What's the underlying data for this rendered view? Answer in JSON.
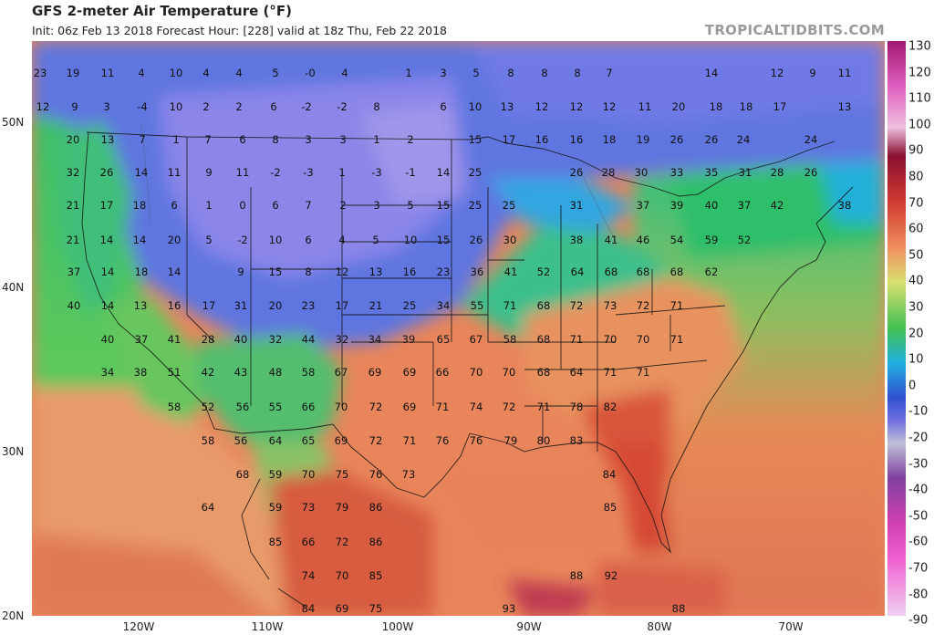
{
  "header": {
    "title": "GFS 2-meter Air Temperature (°F)",
    "subtitle": "Init: 06z Feb 13 2018   Forecast Hour: [228]   valid at 18z Thu, Feb 22 2018",
    "brand": "TROPICALTIDBITS.COM"
  },
  "axes": {
    "lat_labels": [
      "50N",
      "40N",
      "30N",
      "20N"
    ],
    "lon_labels": [
      "120W",
      "110W",
      "100W",
      "90W",
      "80W",
      "70W"
    ]
  },
  "colorbar": {
    "labels": [
      "130",
      "120",
      "110",
      "100",
      "90",
      "80",
      "70",
      "60",
      "50",
      "40",
      "30",
      "20",
      "10",
      "0",
      "-10",
      "-20",
      "-30",
      "-40",
      "-50",
      "-60",
      "-70",
      "-80",
      "-90"
    ]
  },
  "map": {
    "temperature_labels": [
      [
        "23",
        44,
        80
      ],
      [
        "19",
        80,
        80
      ],
      [
        "11",
        118,
        80
      ],
      [
        "4",
        155,
        80
      ],
      [
        "10",
        193,
        80
      ],
      [
        "4",
        226,
        80
      ],
      [
        "4",
        262,
        80
      ],
      [
        "5",
        302,
        80
      ],
      [
        "-0",
        340,
        80
      ],
      [
        "4",
        378,
        80
      ],
      [
        "1",
        448,
        80
      ],
      [
        "3",
        486,
        80
      ],
      [
        "5",
        522,
        80
      ],
      [
        "8",
        560,
        80
      ],
      [
        "8",
        597,
        80
      ],
      [
        "8",
        633,
        80
      ],
      [
        "7",
        668,
        80
      ],
      [
        "14",
        780,
        80
      ],
      [
        "12",
        852,
        80
      ],
      [
        "9",
        891,
        80
      ],
      [
        "11",
        926,
        80
      ],
      [
        "12",
        47,
        117
      ],
      [
        "9",
        82,
        117
      ],
      [
        "3",
        117,
        117
      ],
      [
        "-4",
        156,
        117
      ],
      [
        "10",
        193,
        117
      ],
      [
        "2",
        226,
        117
      ],
      [
        "2",
        262,
        117
      ],
      [
        "6",
        300,
        117
      ],
      [
        "-2",
        336,
        117
      ],
      [
        "-2",
        375,
        117
      ],
      [
        "8",
        413,
        117
      ],
      [
        "6",
        486,
        117
      ],
      [
        "10",
        521,
        117
      ],
      [
        "13",
        556,
        117
      ],
      [
        "12",
        594,
        117
      ],
      [
        "12",
        632,
        117
      ],
      [
        "12",
        668,
        117
      ],
      [
        "11",
        707,
        117
      ],
      [
        "20",
        744,
        117
      ],
      [
        "18",
        785,
        117
      ],
      [
        "18",
        818,
        117
      ],
      [
        "17",
        855,
        117
      ],
      [
        "13",
        926,
        117
      ],
      [
        "20",
        80,
        153
      ],
      [
        "13",
        118,
        153
      ],
      [
        "7",
        156,
        153
      ],
      [
        "1",
        193,
        153
      ],
      [
        "7",
        228,
        153
      ],
      [
        "6",
        266,
        153
      ],
      [
        "8",
        302,
        153
      ],
      [
        "3",
        338,
        153
      ],
      [
        "3",
        376,
        153
      ],
      [
        "1",
        413,
        153
      ],
      [
        "2",
        450,
        153
      ],
      [
        "15",
        521,
        153
      ],
      [
        "17",
        558,
        153
      ],
      [
        "16",
        594,
        153
      ],
      [
        "16",
        632,
        153
      ],
      [
        "18",
        668,
        153
      ],
      [
        "19",
        705,
        153
      ],
      [
        "26",
        742,
        153
      ],
      [
        "26",
        780,
        153
      ],
      [
        "24",
        815,
        153
      ],
      [
        "24",
        889,
        153
      ],
      [
        "32",
        80,
        189
      ],
      [
        "26",
        117,
        189
      ],
      [
        "14",
        155,
        189
      ],
      [
        "11",
        191,
        189
      ],
      [
        "9",
        229,
        189
      ],
      [
        "11",
        266,
        189
      ],
      [
        "-2",
        302,
        189
      ],
      [
        "-3",
        338,
        189
      ],
      [
        "1",
        375,
        189
      ],
      [
        "-3",
        413,
        189
      ],
      [
        "-1",
        450,
        189
      ],
      [
        "14",
        486,
        189
      ],
      [
        "25",
        521,
        189
      ],
      [
        "26",
        632,
        189
      ],
      [
        "28",
        667,
        189
      ],
      [
        "30",
        703,
        189
      ],
      [
        "33",
        742,
        189
      ],
      [
        "35",
        780,
        189
      ],
      [
        "31",
        817,
        189
      ],
      [
        "28",
        852,
        189
      ],
      [
        "26",
        889,
        189
      ],
      [
        "21",
        80,
        225
      ],
      [
        "17",
        117,
        225
      ],
      [
        "18",
        153,
        225
      ],
      [
        "6",
        191,
        225
      ],
      [
        "1",
        229,
        225
      ],
      [
        "0",
        266,
        225
      ],
      [
        "6",
        302,
        225
      ],
      [
        "7",
        338,
        225
      ],
      [
        "2",
        376,
        225
      ],
      [
        "3",
        413,
        225
      ],
      [
        "5",
        450,
        225
      ],
      [
        "15",
        486,
        225
      ],
      [
        "25",
        521,
        225
      ],
      [
        "25",
        558,
        225
      ],
      [
        "31",
        632,
        225
      ],
      [
        "37",
        705,
        225
      ],
      [
        "39",
        742,
        225
      ],
      [
        "40",
        780,
        225
      ],
      [
        "37",
        816,
        225
      ],
      [
        "42",
        852,
        225
      ],
      [
        "38",
        926,
        225
      ],
      [
        "21",
        80,
        263
      ],
      [
        "14",
        117,
        263
      ],
      [
        "14",
        153,
        263
      ],
      [
        "20",
        191,
        263
      ],
      [
        "5",
        229,
        263
      ],
      [
        "-2",
        266,
        263
      ],
      [
        "10",
        302,
        263
      ],
      [
        "6",
        338,
        263
      ],
      [
        "4",
        375,
        263
      ],
      [
        "5",
        412,
        263
      ],
      [
        "10",
        450,
        263
      ],
      [
        "15",
        486,
        263
      ],
      [
        "26",
        522,
        263
      ],
      [
        "30",
        559,
        263
      ],
      [
        "38",
        632,
        263
      ],
      [
        "41",
        670,
        263
      ],
      [
        "46",
        705,
        263
      ],
      [
        "54",
        742,
        263
      ],
      [
        "59",
        780,
        263
      ],
      [
        "52",
        816,
        263
      ],
      [
        "37",
        81,
        298
      ],
      [
        "14",
        118,
        298
      ],
      [
        "18",
        155,
        298
      ],
      [
        "14",
        191,
        298
      ],
      [
        "9",
        264,
        298
      ],
      [
        "15",
        302,
        298
      ],
      [
        "8",
        338,
        298
      ],
      [
        "12",
        375,
        298
      ],
      [
        "13",
        412,
        298
      ],
      [
        "16",
        449,
        298
      ],
      [
        "23",
        486,
        298
      ],
      [
        "36",
        523,
        298
      ],
      [
        "41",
        560,
        298
      ],
      [
        "52",
        596,
        298
      ],
      [
        "64",
        633,
        298
      ],
      [
        "68",
        670,
        298
      ],
      [
        "68",
        705,
        298
      ],
      [
        "68",
        742,
        298
      ],
      [
        "62",
        780,
        298
      ],
      [
        "40",
        81,
        335
      ],
      [
        "14",
        118,
        335
      ],
      [
        "13",
        154,
        335
      ],
      [
        "16",
        191,
        335
      ],
      [
        "17",
        229,
        335
      ],
      [
        "31",
        264,
        335
      ],
      [
        "20",
        302,
        335
      ],
      [
        "23",
        338,
        335
      ],
      [
        "17",
        375,
        335
      ],
      [
        "21",
        412,
        335
      ],
      [
        "25",
        449,
        335
      ],
      [
        "34",
        486,
        335
      ],
      [
        "55",
        523,
        335
      ],
      [
        "71",
        559,
        335
      ],
      [
        "68",
        596,
        335
      ],
      [
        "72",
        632,
        335
      ],
      [
        "73",
        669,
        335
      ],
      [
        "72",
        705,
        335
      ],
      [
        "71",
        742,
        335
      ],
      [
        "40",
        118,
        372
      ],
      [
        "37",
        155,
        372
      ],
      [
        "41",
        191,
        372
      ],
      [
        "28",
        228,
        372
      ],
      [
        "40",
        264,
        372
      ],
      [
        "32",
        302,
        372
      ],
      [
        "44",
        338,
        372
      ],
      [
        "32",
        375,
        372
      ],
      [
        "34",
        411,
        372
      ],
      [
        "39",
        448,
        372
      ],
      [
        "65",
        486,
        372
      ],
      [
        "67",
        522,
        372
      ],
      [
        "58",
        559,
        372
      ],
      [
        "68",
        596,
        372
      ],
      [
        "71",
        632,
        372
      ],
      [
        "70",
        669,
        372
      ],
      [
        "70",
        705,
        372
      ],
      [
        "71",
        742,
        372
      ],
      [
        "34",
        118,
        408
      ],
      [
        "38",
        154,
        408
      ],
      [
        "51",
        191,
        408
      ],
      [
        "42",
        228,
        408
      ],
      [
        "43",
        264,
        408
      ],
      [
        "48",
        302,
        408
      ],
      [
        "58",
        338,
        408
      ],
      [
        "67",
        374,
        408
      ],
      [
        "69",
        411,
        408
      ],
      [
        "69",
        449,
        408
      ],
      [
        "66",
        485,
        408
      ],
      [
        "70",
        522,
        408
      ],
      [
        "70",
        558,
        408
      ],
      [
        "68",
        596,
        408
      ],
      [
        "64",
        632,
        408
      ],
      [
        "71",
        669,
        408
      ],
      [
        "71",
        705,
        408
      ],
      [
        "58",
        191,
        446
      ],
      [
        "52",
        228,
        446
      ],
      [
        "56",
        266,
        446
      ],
      [
        "55",
        302,
        446
      ],
      [
        "66",
        338,
        446
      ],
      [
        "70",
        374,
        446
      ],
      [
        "72",
        412,
        446
      ],
      [
        "69",
        449,
        446
      ],
      [
        "71",
        485,
        446
      ],
      [
        "74",
        522,
        446
      ],
      [
        "72",
        558,
        446
      ],
      [
        "71",
        596,
        446
      ],
      [
        "78",
        632,
        446
      ],
      [
        "82",
        669,
        446
      ],
      [
        "58",
        228,
        483
      ],
      [
        "56",
        264,
        483
      ],
      [
        "64",
        302,
        483
      ],
      [
        "65",
        338,
        483
      ],
      [
        "69",
        374,
        483
      ],
      [
        "72",
        412,
        483
      ],
      [
        "71",
        449,
        483
      ],
      [
        "76",
        485,
        483
      ],
      [
        "76",
        522,
        483
      ],
      [
        "79",
        560,
        483
      ],
      [
        "80",
        596,
        483
      ],
      [
        "83",
        632,
        483
      ],
      [
        "68",
        266,
        520
      ],
      [
        "59",
        302,
        520
      ],
      [
        "70",
        338,
        520
      ],
      [
        "75",
        375,
        520
      ],
      [
        "76",
        412,
        520
      ],
      [
        "73",
        448,
        520
      ],
      [
        "84",
        668,
        520
      ],
      [
        "64",
        228,
        556
      ],
      [
        "59",
        302,
        556
      ],
      [
        "73",
        338,
        556
      ],
      [
        "79",
        375,
        556
      ],
      [
        "86",
        412,
        556
      ],
      [
        "85",
        669,
        556
      ],
      [
        "85",
        302,
        594
      ],
      [
        "66",
        338,
        594
      ],
      [
        "72",
        375,
        594
      ],
      [
        "86",
        412,
        594
      ],
      [
        "74",
        338,
        631
      ],
      [
        "70",
        375,
        631
      ],
      [
        "85",
        412,
        631
      ],
      [
        "88",
        632,
        631
      ],
      [
        "92",
        670,
        631
      ],
      [
        "84",
        338,
        667
      ],
      [
        "69",
        375,
        667
      ],
      [
        "75",
        412,
        667
      ],
      [
        "93",
        558,
        667
      ],
      [
        "88",
        744,
        667
      ]
    ]
  }
}
